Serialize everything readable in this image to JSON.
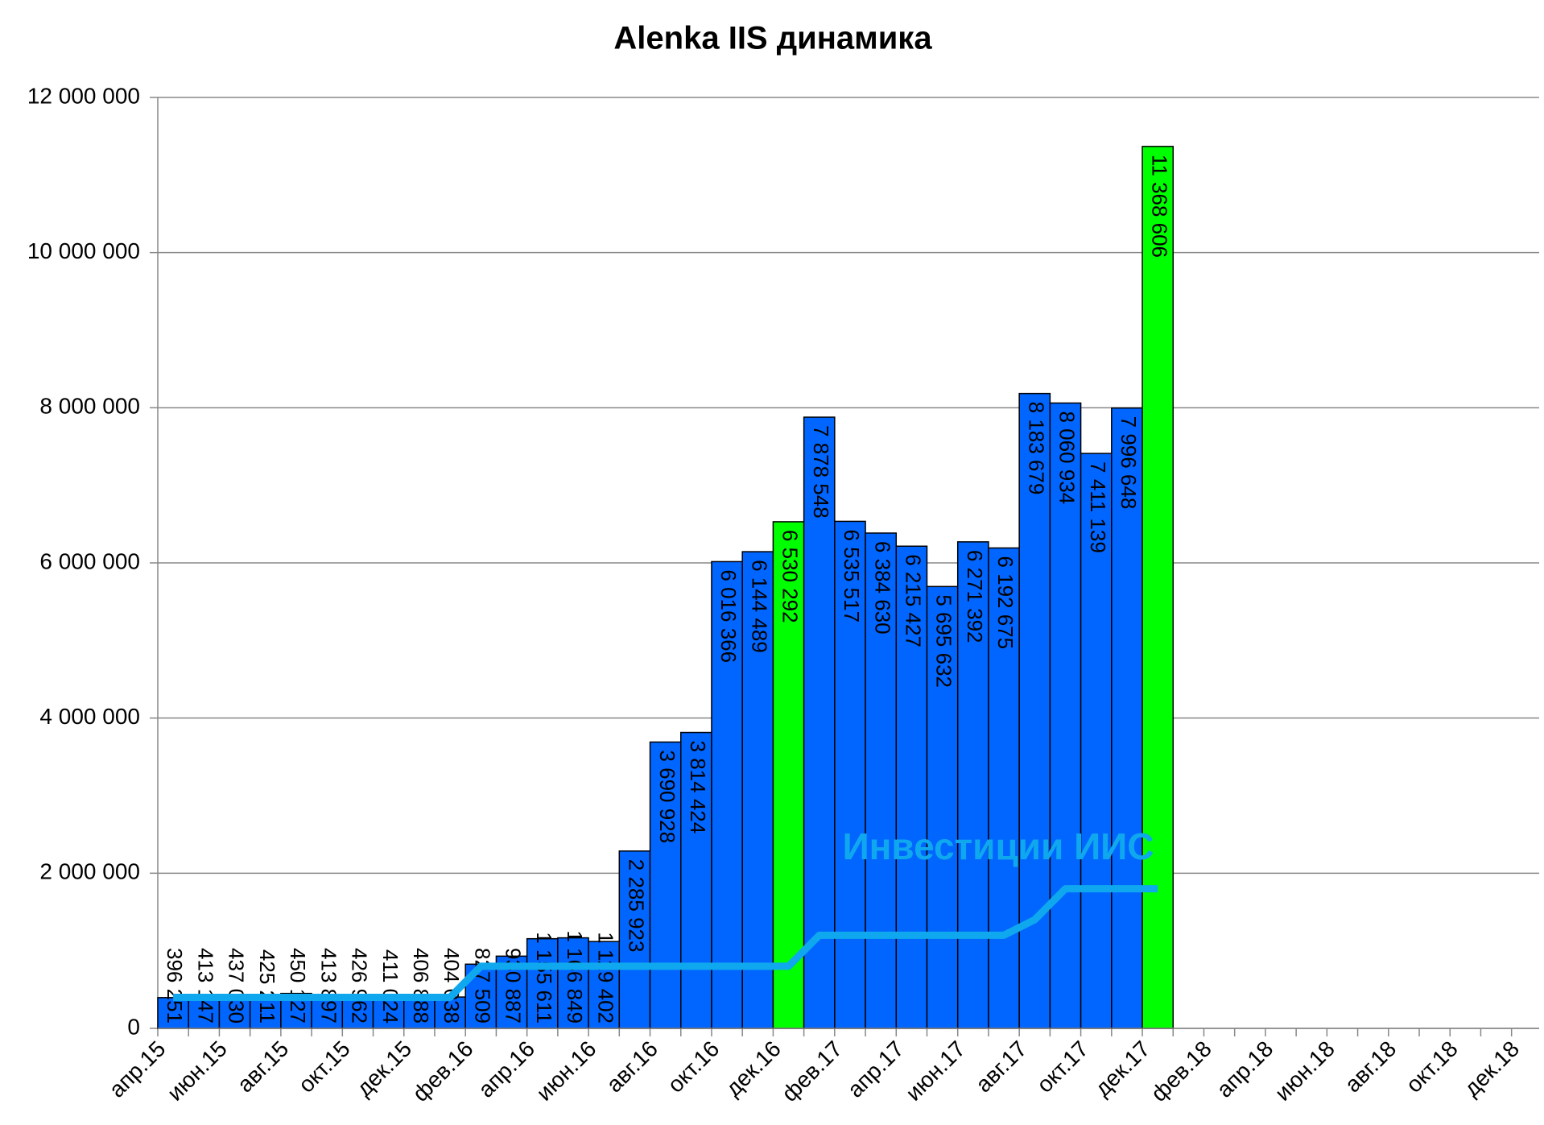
{
  "chart_data": {
    "type": "bar",
    "title": "Alenka IIS динамика",
    "categories": [
      "апр.15",
      null,
      "июн.15",
      null,
      "авг.15",
      null,
      "окт.15",
      null,
      "дек.15",
      null,
      "фев.16",
      null,
      "апр.16",
      null,
      "июн.16",
      null,
      "авг.16",
      null,
      "окт.16",
      null,
      "дек.16",
      null,
      "фев.17",
      null,
      "апр.17",
      null,
      "июн.17",
      null,
      "авг.17",
      null,
      "окт.17",
      null,
      "дек.17",
      null,
      "фев.18",
      null,
      "апр.18",
      null,
      "июн.18",
      null,
      "авг.18",
      null,
      "окт.18",
      null,
      "дек.18"
    ],
    "series": [
      {
        "type": "bar",
        "color": "#0066ff",
        "colors": [
          "#0066ff",
          "#0066ff",
          "#0066ff",
          "#0066ff",
          "#0066ff",
          "#0066ff",
          "#0066ff",
          "#0066ff",
          "#0066ff",
          "#0066ff",
          "#0066ff",
          "#0066ff",
          "#0066ff",
          "#0066ff",
          "#0066ff",
          "#0066ff",
          "#0066ff",
          "#0066ff",
          "#0066ff",
          "#0066ff",
          "#00ff00",
          "#0066ff",
          "#0066ff",
          "#0066ff",
          "#0066ff",
          "#0066ff",
          "#0066ff",
          "#0066ff",
          "#0066ff",
          "#0066ff",
          "#0066ff",
          "#0066ff",
          "#00ff00",
          null,
          null,
          null,
          null,
          null,
          null,
          null,
          null,
          null,
          null,
          null,
          null
        ],
        "values": [
          396251,
          413147,
          437030,
          425211,
          450127,
          413897,
          426962,
          411024,
          406888,
          404038,
          827509,
          930887,
          1155611,
          1166849,
          1119402,
          2285923,
          3690928,
          3814424,
          6016366,
          6144489,
          6530292,
          7878548,
          6535517,
          6384630,
          6215427,
          5695632,
          6271392,
          6192675,
          8183679,
          8060934,
          7411139,
          7996648,
          11368606,
          null,
          null,
          null,
          null,
          null,
          null,
          null,
          null,
          null,
          null,
          null,
          null
        ],
        "value_labels": [
          "396 251",
          "413 147",
          "437 030",
          "425 211",
          "450 127",
          "413 897",
          "426 962",
          "411 024",
          "406 888",
          "404 038",
          "827 509",
          "930 887",
          "1 155 611",
          "1 166 849",
          "1 119 402",
          "2 285 923",
          "3 690 928",
          "3 814 424",
          "6 016 366",
          "6 144 489",
          "6 530 292",
          "7 878 548",
          "6 535 517",
          "6 384 630",
          "6 215 427",
          "5 695 632",
          "6 271 392",
          "6 192 675",
          "8 183 679",
          "8 060 934",
          "7 411 139",
          "7 996 648",
          "11 368 606",
          null,
          null,
          null,
          null,
          null,
          null,
          null,
          null,
          null,
          null,
          null,
          null
        ]
      },
      {
        "type": "line",
        "name": "Инвестиции ИИС",
        "color": "#0fa8ee",
        "values": [
          400000,
          400000,
          400000,
          400000,
          400000,
          400000,
          400000,
          400000,
          400000,
          400000,
          800000,
          800000,
          800000,
          800000,
          800000,
          800000,
          800000,
          800000,
          800000,
          800000,
          800000,
          1200000,
          1200000,
          1200000,
          1200000,
          1200000,
          1200000,
          1200000,
          1400000,
          1800000,
          1800000,
          1800000,
          1800000,
          null,
          null,
          null,
          null,
          null,
          null,
          null,
          null,
          null,
          null,
          null,
          null
        ]
      }
    ],
    "ylim": [
      0,
      12000000
    ],
    "yticks": [
      0,
      {
        "value": 2000000,
        "label": "2 000 000"
      },
      {
        "value": 4000000,
        "label": "4 000 000"
      },
      {
        "value": 6000000,
        "label": "6 000 000"
      },
      {
        "value": 8000000,
        "label": "8 000 000"
      },
      {
        "value": 10000000,
        "label": "10 000 000"
      },
      {
        "value": 12000000,
        "label": "12 000 000"
      }
    ],
    "grid": true
  }
}
